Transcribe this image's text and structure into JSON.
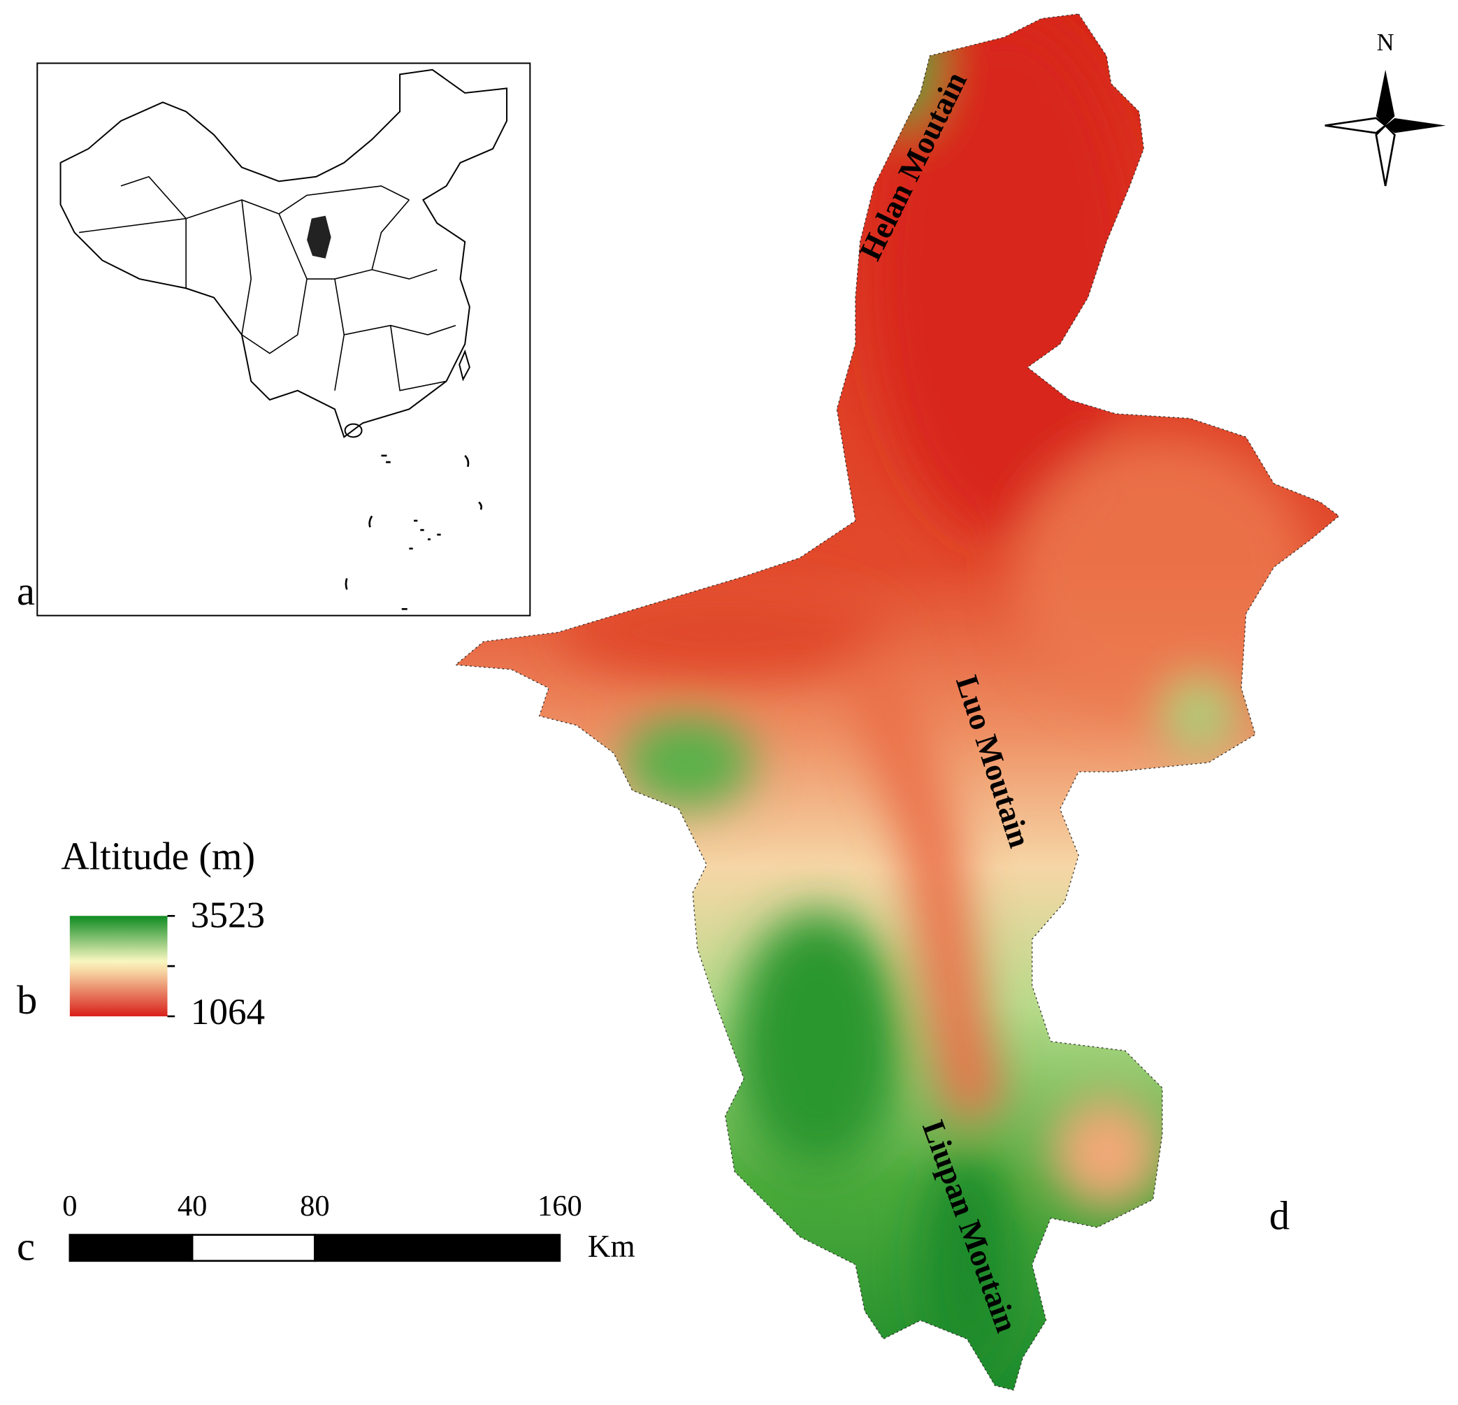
{
  "panel_labels": [
    "a",
    "b",
    "c",
    "d"
  ],
  "legend": {
    "title": "Altitude (m)",
    "max": 3523,
    "min": 1064
  },
  "scale_bar": {
    "ticks": [
      0,
      40,
      80,
      160
    ],
    "unit": "Km"
  },
  "north": "N",
  "mountains": [
    "Helan Moutain",
    "Luo Moutain",
    "Liupan Moutain"
  ]
}
